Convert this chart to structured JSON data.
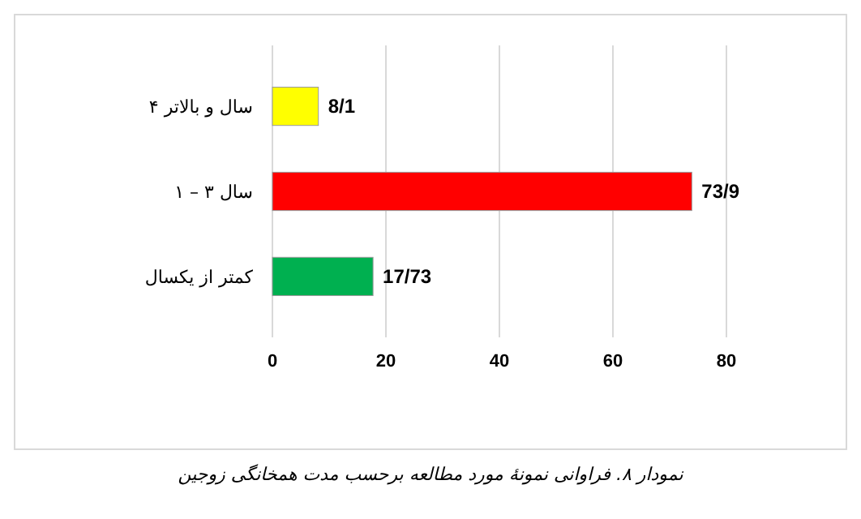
{
  "chart_data": {
    "type": "bar",
    "orientation": "horizontal",
    "categories": [
      "۴ سال و بالاتر",
      "۱ – ۳ سال",
      "کمتر از یکسال"
    ],
    "values": [
      8.1,
      73.9,
      17.73
    ],
    "colors": [
      "#ffff00",
      "#ff0000",
      "#00b050"
    ],
    "value_labels": [
      "8/1",
      "73/9",
      "17/73"
    ],
    "xlim": [
      0,
      80
    ],
    "xticks": [
      0,
      20,
      40,
      60,
      80
    ],
    "grid": "x",
    "annotations": [
      "نمودار ۸. فراوانی نمونهٔ مورد مطالعه برحسب مدت همخانگی زوجین"
    ]
  }
}
